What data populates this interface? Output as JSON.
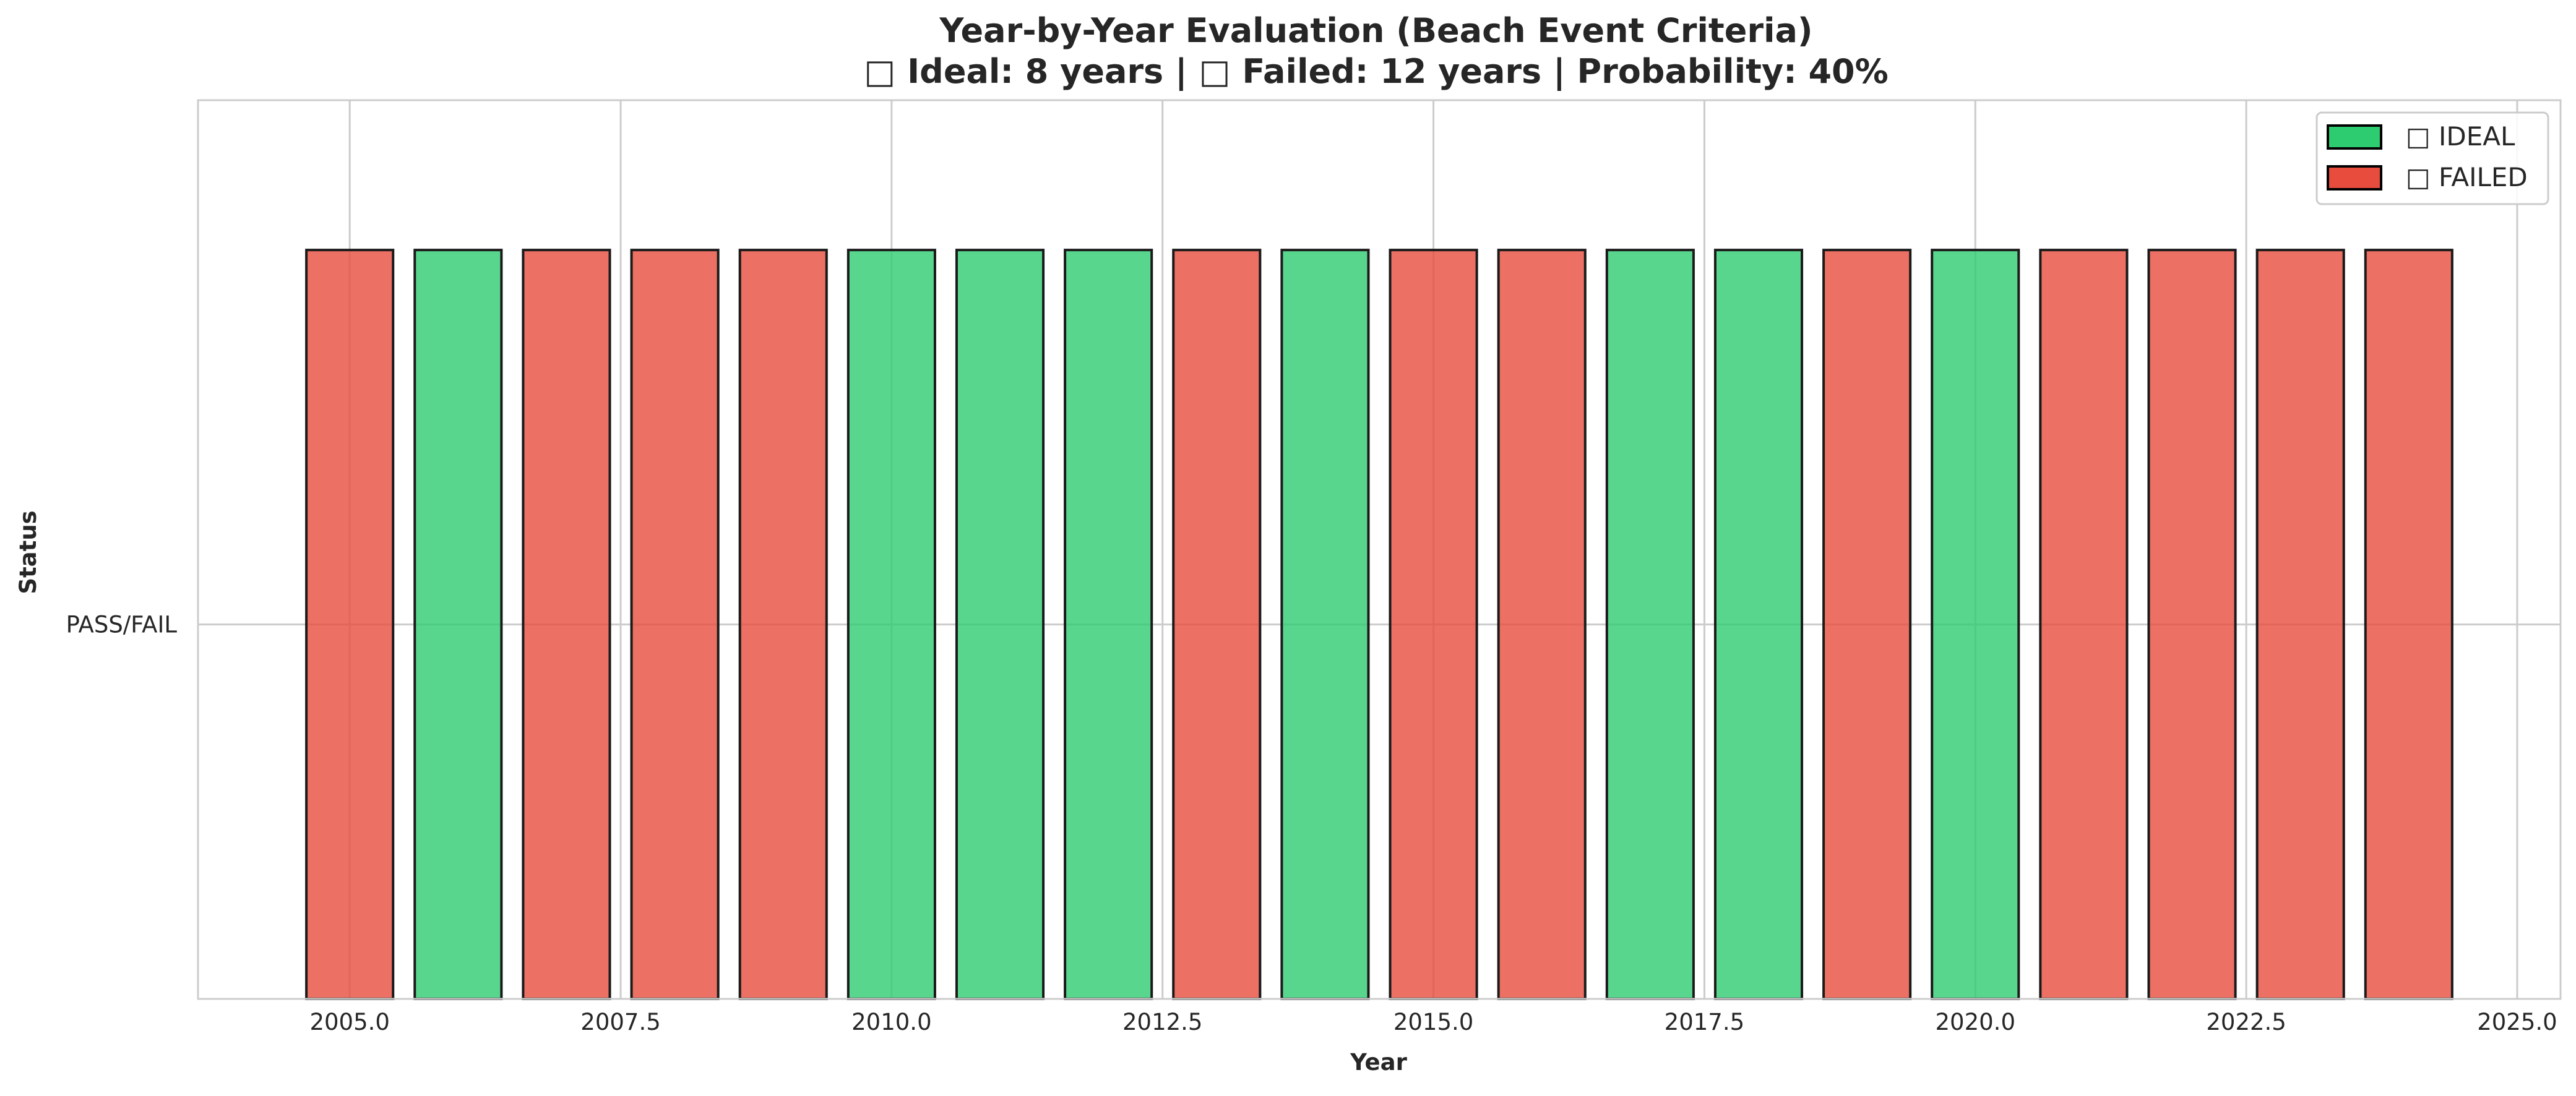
{
  "chart_data": {
    "type": "bar",
    "title": "Year-by-Year Evaluation (Beach Event Criteria)",
    "subtitle": "□ Ideal: 8 years | □ Failed: 12 years | Probability: 40%",
    "xlabel": "Year",
    "ylabel": "Status",
    "x_ticks": [
      "2005.0",
      "2007.5",
      "2010.0",
      "2012.5",
      "2015.0",
      "2017.5",
      "2020.0",
      "2022.5",
      "2025.0"
    ],
    "x_tick_values": [
      2005,
      2007.5,
      2010,
      2012.5,
      2015,
      2017.5,
      2020,
      2022.5,
      2025
    ],
    "y_ticks": [
      "PASS/FAIL"
    ],
    "y_tick_values": [
      0
    ],
    "xlim": [
      2003.6,
      2025.4
    ],
    "ylim": [
      -1,
      1.4
    ],
    "grid": true,
    "legend_position": "top-right",
    "colors": {
      "ideal": "#2ecc71",
      "failed": "#e74c3c"
    },
    "legend": [
      {
        "key": "ideal",
        "label": "□ IDEAL"
      },
      {
        "key": "failed",
        "label": "□ FAILED"
      }
    ],
    "bars": [
      {
        "year": 2005,
        "status": "failed",
        "bottom": -1,
        "top": 1
      },
      {
        "year": 2006,
        "status": "ideal",
        "bottom": -1,
        "top": 1
      },
      {
        "year": 2007,
        "status": "failed",
        "bottom": -1,
        "top": 1
      },
      {
        "year": 2008,
        "status": "failed",
        "bottom": -1,
        "top": 1
      },
      {
        "year": 2009,
        "status": "failed",
        "bottom": -1,
        "top": 1
      },
      {
        "year": 2010,
        "status": "ideal",
        "bottom": -1,
        "top": 1
      },
      {
        "year": 2011,
        "status": "ideal",
        "bottom": -1,
        "top": 1
      },
      {
        "year": 2012,
        "status": "ideal",
        "bottom": -1,
        "top": 1
      },
      {
        "year": 2013,
        "status": "failed",
        "bottom": -1,
        "top": 1
      },
      {
        "year": 2014,
        "status": "ideal",
        "bottom": -1,
        "top": 1
      },
      {
        "year": 2015,
        "status": "failed",
        "bottom": -1,
        "top": 1
      },
      {
        "year": 2016,
        "status": "failed",
        "bottom": -1,
        "top": 1
      },
      {
        "year": 2017,
        "status": "ideal",
        "bottom": -1,
        "top": 1
      },
      {
        "year": 2018,
        "status": "ideal",
        "bottom": -1,
        "top": 1
      },
      {
        "year": 2019,
        "status": "failed",
        "bottom": -1,
        "top": 1
      },
      {
        "year": 2020,
        "status": "ideal",
        "bottom": -1,
        "top": 1
      },
      {
        "year": 2021,
        "status": "failed",
        "bottom": -1,
        "top": 1
      },
      {
        "year": 2022,
        "status": "failed",
        "bottom": -1,
        "top": 1
      },
      {
        "year": 2023,
        "status": "failed",
        "bottom": -1,
        "top": 1
      },
      {
        "year": 2024,
        "status": "failed",
        "bottom": -1,
        "top": 1
      }
    ]
  }
}
